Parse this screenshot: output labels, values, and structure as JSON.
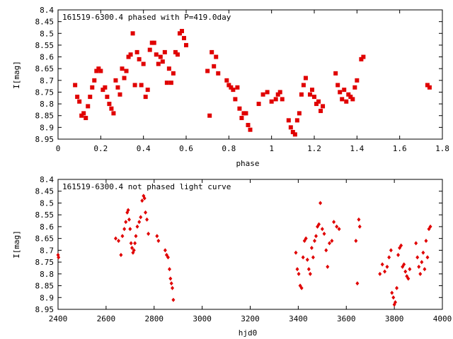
{
  "marker_color": "#e00000",
  "chart_data": [
    {
      "type": "scatter",
      "title": "161519-6300.4 phased with P=419.0day",
      "xlabel": "phase",
      "ylabel": "I[mag]",
      "xlim": [
        0,
        1.8
      ],
      "ylim": [
        8.95,
        8.4
      ],
      "y_inverted": true,
      "grid": false,
      "xticks": [
        0,
        0.2,
        0.4,
        0.6,
        0.8,
        1,
        1.2,
        1.4,
        1.6,
        1.8
      ],
      "xticklabels": [
        "0",
        "0.2",
        "0.4",
        "0.6",
        "0.8",
        "1",
        "1.2",
        "1.4",
        "1.6",
        "1.8"
      ],
      "yticks": [
        8.4,
        8.45,
        8.5,
        8.55,
        8.6,
        8.65,
        8.7,
        8.75,
        8.8,
        8.85,
        8.9,
        8.95
      ],
      "yticklabels": [
        "8.4",
        "8.45",
        "8.5",
        "8.55",
        "8.6",
        "8.65",
        "8.7",
        "8.75",
        "8.8",
        "8.85",
        "8.9",
        "8.95"
      ],
      "x": [
        0.08,
        0.09,
        0.1,
        0.11,
        0.12,
        0.13,
        0.14,
        0.15,
        0.16,
        0.17,
        0.18,
        0.19,
        0.2,
        0.21,
        0.22,
        0.23,
        0.24,
        0.25,
        0.26,
        0.27,
        0.28,
        0.29,
        0.3,
        0.31,
        0.32,
        0.33,
        0.34,
        0.35,
        0.36,
        0.37,
        0.38,
        0.39,
        0.4,
        0.41,
        0.42,
        0.43,
        0.44,
        0.45,
        0.46,
        0.47,
        0.48,
        0.49,
        0.5,
        0.51,
        0.52,
        0.53,
        0.54,
        0.55,
        0.56,
        0.57,
        0.58,
        0.59,
        0.6,
        0.7,
        0.71,
        0.72,
        0.73,
        0.74,
        0.75,
        0.79,
        0.8,
        0.81,
        0.82,
        0.83,
        0.84,
        0.85,
        0.86,
        0.87,
        0.88,
        0.89,
        0.9,
        0.94,
        0.96,
        0.98,
        1.0,
        1.02,
        1.03,
        1.04,
        1.05,
        1.08,
        1.09,
        1.1,
        1.11,
        1.12,
        1.13,
        1.14,
        1.15,
        1.16,
        1.18,
        1.19,
        1.2,
        1.21,
        1.22,
        1.23,
        1.24,
        1.3,
        1.31,
        1.32,
        1.33,
        1.34,
        1.35,
        1.36,
        1.37,
        1.38,
        1.39,
        1.4,
        1.42,
        1.43,
        1.73,
        1.74
      ],
      "y": [
        8.72,
        8.77,
        8.79,
        8.85,
        8.84,
        8.86,
        8.81,
        8.77,
        8.73,
        8.7,
        8.66,
        8.65,
        8.66,
        8.74,
        8.73,
        8.77,
        8.8,
        8.82,
        8.84,
        8.7,
        8.73,
        8.76,
        8.65,
        8.69,
        8.66,
        8.6,
        8.59,
        8.5,
        8.72,
        8.58,
        8.61,
        8.72,
        8.63,
        8.77,
        8.74,
        8.57,
        8.54,
        8.54,
        8.59,
        8.63,
        8.6,
        8.62,
        8.58,
        8.71,
        8.65,
        8.71,
        8.67,
        8.58,
        8.59,
        8.5,
        8.49,
        8.52,
        8.55,
        8.66,
        8.85,
        8.58,
        8.64,
        8.6,
        8.67,
        8.7,
        8.72,
        8.73,
        8.74,
        8.78,
        8.73,
        8.82,
        8.86,
        8.84,
        8.84,
        8.89,
        8.91,
        8.8,
        8.76,
        8.75,
        8.79,
        8.78,
        8.76,
        8.75,
        8.78,
        8.87,
        8.9,
        8.92,
        8.93,
        8.87,
        8.84,
        8.76,
        8.72,
        8.69,
        8.76,
        8.74,
        8.77,
        8.8,
        8.79,
        8.83,
        8.81,
        8.67,
        8.72,
        8.75,
        8.78,
        8.74,
        8.79,
        8.76,
        8.77,
        8.78,
        8.73,
        8.7,
        8.61,
        8.6,
        8.72,
        8.73
      ]
    },
    {
      "type": "scatter",
      "title": "161519-6300.4 not phased light curve",
      "xlabel": "hjd0",
      "ylabel": "I[mag]",
      "xlim": [
        2400,
        4000
      ],
      "ylim": [
        8.95,
        8.4
      ],
      "y_inverted": true,
      "grid": false,
      "xticks": [
        2400,
        2600,
        2800,
        3000,
        3200,
        3400,
        3600,
        3800,
        4000
      ],
      "xticklabels": [
        "2400",
        "2600",
        "2800",
        "3000",
        "3200",
        "3400",
        "3600",
        "3800",
        "4000"
      ],
      "yticks": [
        8.4,
        8.45,
        8.5,
        8.55,
        8.6,
        8.65,
        8.7,
        8.75,
        8.8,
        8.85,
        8.9,
        8.95
      ],
      "yticklabels": [
        "8.4",
        "8.45",
        "8.5",
        "8.55",
        "8.6",
        "8.65",
        "8.7",
        "8.75",
        "8.8",
        "8.85",
        "8.9",
        "8.95"
      ],
      "x": [
        2400,
        2402,
        2640,
        2652,
        2662,
        2668,
        2676,
        2682,
        2688,
        2692,
        2696,
        2700,
        2704,
        2708,
        2712,
        2716,
        2720,
        2724,
        2730,
        2738,
        2744,
        2750,
        2756,
        2760,
        2764,
        2770,
        2776,
        2812,
        2818,
        2846,
        2852,
        2858,
        2864,
        2868,
        2872,
        2876,
        2880,
        3390,
        3396,
        3402,
        3408,
        3414,
        3420,
        3426,
        3432,
        3438,
        3444,
        3450,
        3456,
        3462,
        3468,
        3474,
        3480,
        3486,
        3492,
        3500,
        3508,
        3516,
        3522,
        3530,
        3540,
        3548,
        3560,
        3570,
        3640,
        3646,
        3652,
        3656,
        3740,
        3750,
        3760,
        3770,
        3778,
        3786,
        3790,
        3796,
        3800,
        3804,
        3810,
        3816,
        3822,
        3828,
        3834,
        3840,
        3846,
        3852,
        3858,
        3864,
        3890,
        3896,
        3902,
        3908,
        3914,
        3920,
        3926,
        3932,
        3938,
        3944,
        3950
      ],
      "y": [
        8.72,
        8.73,
        8.65,
        8.66,
        8.72,
        8.64,
        8.61,
        8.58,
        8.54,
        8.53,
        8.57,
        8.61,
        8.67,
        8.69,
        8.71,
        8.7,
        8.67,
        8.64,
        8.6,
        8.58,
        8.56,
        8.49,
        8.47,
        8.48,
        8.54,
        8.57,
        8.63,
        8.64,
        8.66,
        8.7,
        8.72,
        8.73,
        8.78,
        8.82,
        8.84,
        8.86,
        8.91,
        8.71,
        8.78,
        8.8,
        8.85,
        8.86,
        8.73,
        8.66,
        8.65,
        8.74,
        8.78,
        8.8,
        8.69,
        8.73,
        8.66,
        8.64,
        8.6,
        8.59,
        8.5,
        8.61,
        8.63,
        8.7,
        8.77,
        8.67,
        8.66,
        8.58,
        8.6,
        8.61,
        8.66,
        8.84,
        8.57,
        8.6,
        8.8,
        8.76,
        8.79,
        8.77,
        8.73,
        8.7,
        8.88,
        8.9,
        8.93,
        8.92,
        8.86,
        8.72,
        8.69,
        8.68,
        8.77,
        8.76,
        8.79,
        8.81,
        8.82,
        8.78,
        8.67,
        8.73,
        8.77,
        8.8,
        8.75,
        8.71,
        8.78,
        8.66,
        8.73,
        8.61,
        8.6
      ]
    }
  ]
}
